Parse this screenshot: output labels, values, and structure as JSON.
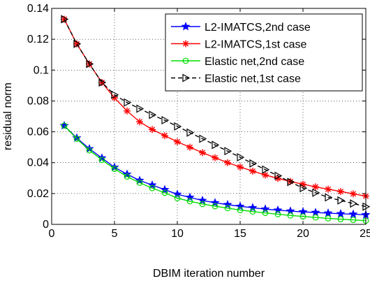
{
  "chart_data": {
    "type": "line",
    "xlabel": "DBIM iteration number",
    "ylabel": "residual norm",
    "xlim": [
      0,
      25
    ],
    "ylim": [
      0,
      0.14
    ],
    "xticks": [
      0,
      5,
      10,
      15,
      20,
      25
    ],
    "yticks": [
      0,
      0.02,
      0.04,
      0.06,
      0.08,
      0.1,
      0.12,
      0.14
    ],
    "xtick_labels": [
      "0",
      "5",
      "10",
      "15",
      "20",
      "25"
    ],
    "ytick_labels": [
      "0",
      "0.02",
      "0.04",
      "0.06",
      "0.08",
      "0.1",
      "0.12",
      "0.14"
    ],
    "grid": true,
    "legend_position": "top-right",
    "x": [
      1,
      2,
      3,
      4,
      5,
      6,
      7,
      8,
      9,
      10,
      11,
      12,
      13,
      14,
      15,
      16,
      17,
      18,
      19,
      20,
      21,
      22,
      23,
      24,
      25
    ],
    "series": [
      {
        "name": "L2-IMATCS,2nd case",
        "color": "#0000ff",
        "marker": "star",
        "linestyle": "solid",
        "values": [
          0.064,
          0.056,
          0.049,
          0.043,
          0.037,
          0.0325,
          0.0285,
          0.0255,
          0.0225,
          0.0195,
          0.0175,
          0.0155,
          0.014,
          0.0128,
          0.0117,
          0.0108,
          0.0099,
          0.0092,
          0.0086,
          0.0081,
          0.0077,
          0.0073,
          0.0069,
          0.0066,
          0.0062
        ]
      },
      {
        "name": "L2-IMATCS,1st case",
        "color": "#ff0000",
        "marker": "asterisk",
        "linestyle": "solid",
        "values": [
          0.133,
          0.117,
          0.104,
          0.092,
          0.082,
          0.0735,
          0.0665,
          0.0615,
          0.0575,
          0.0535,
          0.05,
          0.0465,
          0.0432,
          0.04,
          0.0372,
          0.0345,
          0.032,
          0.0298,
          0.0278,
          0.026,
          0.0243,
          0.0228,
          0.0213,
          0.0198,
          0.0183
        ]
      },
      {
        "name": "Elastic net,2nd case",
        "color": "#00dd00",
        "marker": "circle",
        "linestyle": "solid",
        "values": [
          0.064,
          0.0555,
          0.048,
          0.0418,
          0.036,
          0.031,
          0.027,
          0.0235,
          0.0205,
          0.017,
          0.015,
          0.0132,
          0.0118,
          0.0105,
          0.0093,
          0.0083,
          0.0074,
          0.0066,
          0.0058,
          0.0051,
          0.0045,
          0.0039,
          0.0034,
          0.0029,
          0.0024
        ]
      },
      {
        "name": "Elastic net,1st case",
        "color": "#000000",
        "marker": "triangle-right",
        "linestyle": "dashed",
        "values": [
          0.133,
          0.117,
          0.104,
          0.092,
          0.084,
          0.079,
          0.075,
          0.071,
          0.0675,
          0.0635,
          0.0595,
          0.0555,
          0.0515,
          0.0475,
          0.0435,
          0.0395,
          0.0355,
          0.0315,
          0.0275,
          0.0235,
          0.0205,
          0.0175,
          0.0155,
          0.0135,
          0.0115
        ]
      }
    ]
  }
}
